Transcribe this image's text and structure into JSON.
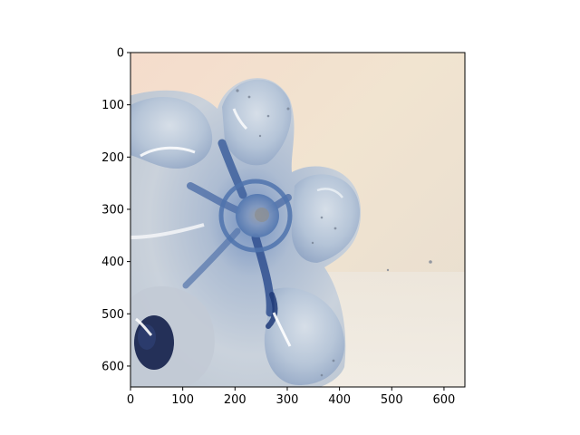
{
  "image_display": {
    "subject": "clear-blue-plastic-bottle-base",
    "colors": {
      "background_wall": "#efe2cf",
      "plastic_light": "#c9d4e0",
      "plastic_mid": "#8fa7c6",
      "plastic_dark": "#3d5f9c",
      "shadow_navy": "#1b2751",
      "axis": "#000000"
    }
  },
  "axes": {
    "x_ticks": [
      "0",
      "100",
      "200",
      "300",
      "400",
      "500",
      "600"
    ],
    "y_ticks": [
      "0",
      "100",
      "200",
      "300",
      "400",
      "500",
      "600"
    ],
    "x_range": [
      0,
      640
    ],
    "y_range": [
      640,
      0
    ]
  }
}
